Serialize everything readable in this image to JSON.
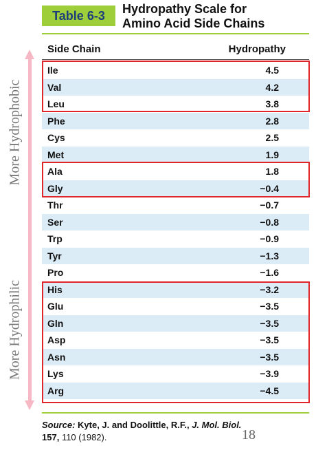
{
  "table_tag": "Table 6-3",
  "title_line1": "Hydropathy Scale for",
  "title_line2": "Amino Acid Side Chains",
  "headers": {
    "side_chain": "Side Chain",
    "hydropathy": "Hydropathy"
  },
  "rows": [
    {
      "name": "Ile",
      "value": "4.5"
    },
    {
      "name": "Val",
      "value": "4.2"
    },
    {
      "name": "Leu",
      "value": "3.8"
    },
    {
      "name": "Phe",
      "value": "2.8"
    },
    {
      "name": "Cys",
      "value": "2.5"
    },
    {
      "name": "Met",
      "value": "1.9"
    },
    {
      "name": "Ala",
      "value": "1.8"
    },
    {
      "name": "Gly",
      "value": "−0.4"
    },
    {
      "name": "Thr",
      "value": "−0.7"
    },
    {
      "name": "Ser",
      "value": "−0.8"
    },
    {
      "name": "Trp",
      "value": "−0.9"
    },
    {
      "name": "Tyr",
      "value": "−1.3"
    },
    {
      "name": "Pro",
      "value": "−1.6"
    },
    {
      "name": "His",
      "value": "−3.2"
    },
    {
      "name": "Glu",
      "value": "−3.5"
    },
    {
      "name": "Gln",
      "value": "−3.5"
    },
    {
      "name": "Asp",
      "value": "−3.5"
    },
    {
      "name": "Asn",
      "value": "−3.5"
    },
    {
      "name": "Lys",
      "value": "−3.9"
    },
    {
      "name": "Arg",
      "value": "−4.5"
    }
  ],
  "axis_labels": {
    "top": "More Hydrophobic",
    "bottom": "More Hydrophilic"
  },
  "source": {
    "label": "Source:",
    "authors": "Kyte, J. and Doolittle, R.F.,",
    "journal": "J. Mol. Biol.",
    "volume": "157,",
    "pages": "110 (1982)."
  },
  "page_number": "18",
  "colors": {
    "accent_green": "#9ecf3a",
    "highlight_red": "#e0252b",
    "row_blue": "#dcecf7",
    "arrow_pink": "#f5b8c4"
  }
}
